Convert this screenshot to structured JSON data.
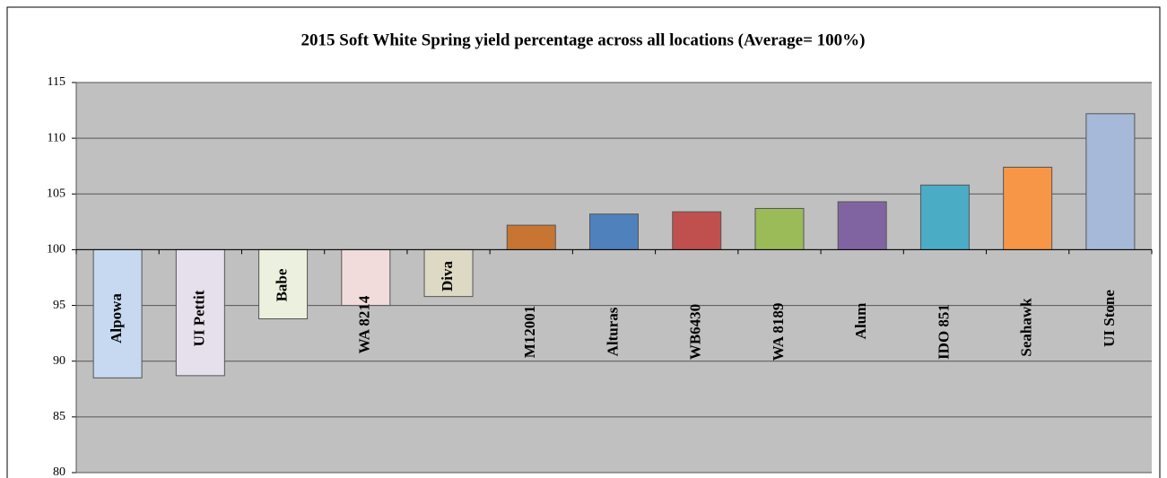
{
  "chart_data": {
    "type": "bar",
    "title": "2015 Soft White Spring yield percentage across all locations (Average= 100%)",
    "categories": [
      "Alpowa",
      "UI Pettit",
      "Babe",
      "WA 8214",
      "Diva",
      "M12001",
      "Alturas",
      "WB6430",
      "WA 8189",
      "Alum",
      "IDO 851",
      "Seahawk",
      "UI Stone"
    ],
    "values": [
      88.5,
      88.7,
      93.8,
      95.0,
      95.8,
      102.2,
      103.2,
      103.4,
      103.7,
      104.3,
      105.8,
      107.4,
      112.2
    ],
    "colors": [
      "#c6d9f1",
      "#e6e0ec",
      "#ebf1de",
      "#f2dcdb",
      "#ddd9c4",
      "#c87533",
      "#4f81bd",
      "#c0504d",
      "#9bbb59",
      "#8064a2",
      "#4bacc6",
      "#f79646",
      "#a6b9d9"
    ],
    "ylim": [
      80,
      115
    ],
    "yticks": [
      80,
      85,
      90,
      95,
      100,
      105,
      110,
      115
    ],
    "x_axis_at": 100,
    "grid": true
  }
}
